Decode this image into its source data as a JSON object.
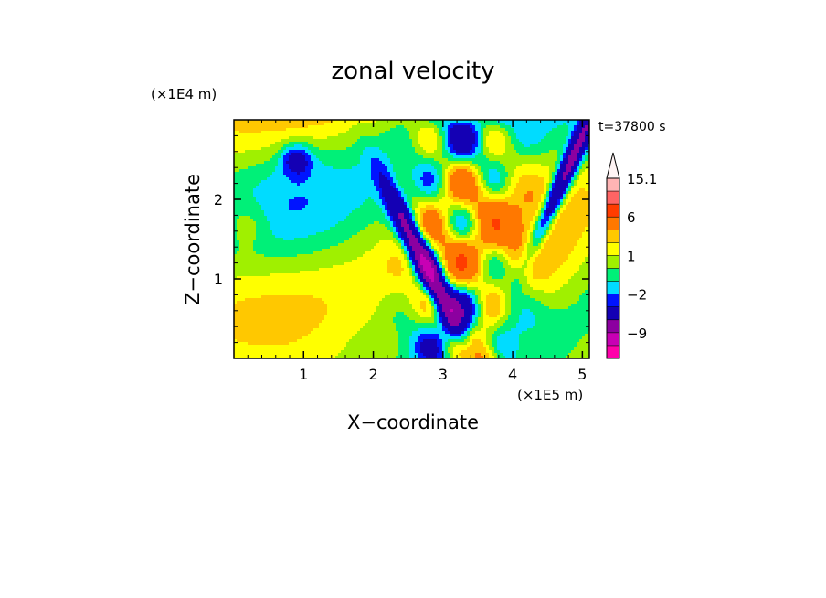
{
  "chart_data": {
    "type": "heatmap",
    "title": "zonal velocity",
    "xlabel": "X−coordinate",
    "ylabel": "Z−coordinate",
    "x_unit": "(×1E5 m)",
    "y_unit": "(×1E4 m)",
    "time_label": "t=37800 s",
    "xlim": [
      0,
      5.1
    ],
    "ylim": [
      0,
      3.0
    ],
    "x_ticks": [
      1,
      2,
      3,
      4,
      5
    ],
    "x_tick_labels": [
      "1",
      "2",
      "3",
      "4",
      "5"
    ],
    "y_ticks": [
      1,
      2
    ],
    "y_tick_labels": [
      "1",
      "2"
    ],
    "colorbar": {
      "levels_ascending": [
        -15,
        -12,
        -9,
        -6,
        -3,
        -2,
        -1,
        0,
        1,
        2,
        3,
        6,
        9,
        12,
        15.1
      ],
      "colors_ascending": [
        "#ff00aa",
        "#c800b4",
        "#8c00a0",
        "#1400b4",
        "#0014ff",
        "#00dcff",
        "#00f078",
        "#a0f000",
        "#ffff00",
        "#ffc800",
        "#ff7800",
        "#ff3c00",
        "#ff6464",
        "#ffb4b4"
      ],
      "tick_labels": [
        "15.1",
        "6",
        "1",
        "−2",
        "−9"
      ],
      "tick_values": [
        15.1,
        6,
        1,
        -2,
        -9
      ],
      "extend": "max"
    }
  }
}
